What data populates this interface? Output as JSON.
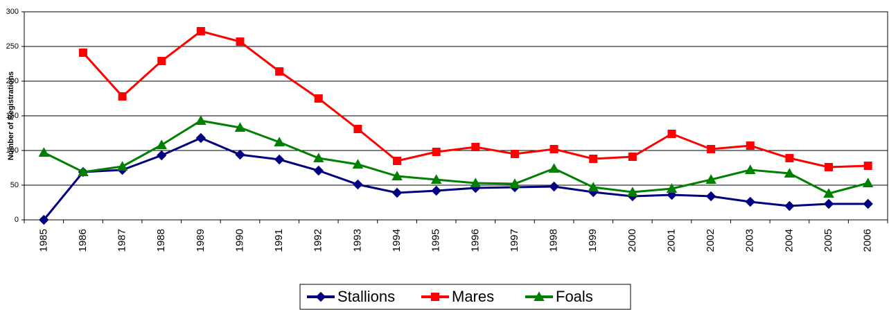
{
  "chart_data": {
    "type": "line",
    "y_label": "Number of Registrations",
    "categories": [
      "1985",
      "1986",
      "1987",
      "1988",
      "1989",
      "1990",
      "1991",
      "1992",
      "1993",
      "1994",
      "1995",
      "1996",
      "1997",
      "1998",
      "1999",
      "2000",
      "2001",
      "2002",
      "2003",
      "2004",
      "2005",
      "2006"
    ],
    "series": [
      {
        "name": "Stallions",
        "color": "#000080",
        "marker": "diamond",
        "values": [
          0,
          69,
          72,
          93,
          118,
          94,
          87,
          71,
          51,
          39,
          42,
          46,
          47,
          48,
          40,
          34,
          36,
          34,
          26,
          20,
          23,
          23
        ]
      },
      {
        "name": "Mares",
        "color": "#ff0000",
        "marker": "square",
        "values": [
          null,
          241,
          178,
          229,
          272,
          257,
          214,
          175,
          131,
          85,
          98,
          105,
          95,
          102,
          88,
          91,
          124,
          102,
          107,
          89,
          76,
          78
        ]
      },
      {
        "name": "Foals",
        "color": "#008000",
        "marker": "triangle",
        "values": [
          97,
          69,
          77,
          108,
          143,
          133,
          112,
          89,
          80,
          63,
          58,
          53,
          52,
          74,
          47,
          40,
          45,
          58,
          72,
          67,
          38,
          53
        ]
      }
    ],
    "ylim": [
      0,
      300
    ],
    "yticks": [
      0,
      50,
      100,
      150,
      200,
      250,
      300
    ],
    "grid": true,
    "legend": "bottom"
  }
}
